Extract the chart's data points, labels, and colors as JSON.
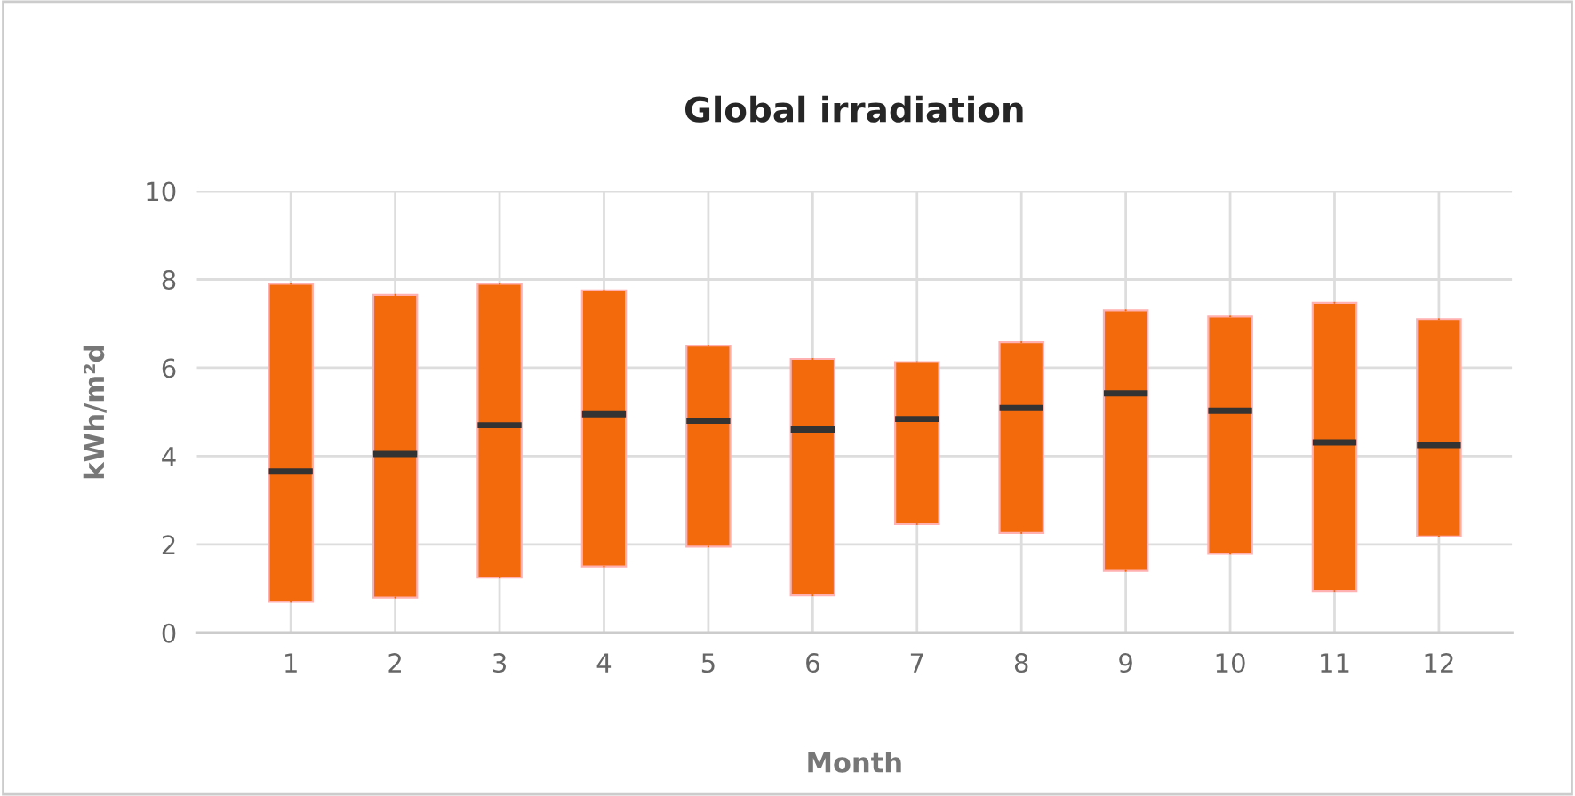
{
  "chart_data": {
    "type": "box",
    "title": "Global irradiation",
    "xlabel": "Month",
    "ylabel": "kWh/m²d",
    "categories": [
      "1",
      "2",
      "3",
      "4",
      "5",
      "6",
      "7",
      "8",
      "9",
      "10",
      "11",
      "12"
    ],
    "series": [
      {
        "color": "#f26a0c",
        "boxes": [
          {
            "low": 0.7,
            "q1": 0.7,
            "median": 3.65,
            "q3": 7.9,
            "high": 7.9
          },
          {
            "low": 0.8,
            "q1": 0.8,
            "median": 4.05,
            "q3": 7.65,
            "high": 7.65
          },
          {
            "low": 1.25,
            "q1": 1.25,
            "median": 4.7,
            "q3": 7.9,
            "high": 7.9
          },
          {
            "low": 1.5,
            "q1": 1.5,
            "median": 4.95,
            "q3": 7.75,
            "high": 7.75
          },
          {
            "low": 1.95,
            "q1": 1.95,
            "median": 4.8,
            "q3": 6.5,
            "high": 6.5
          },
          {
            "low": 0.85,
            "q1": 0.85,
            "median": 4.6,
            "q3": 6.2,
            "high": 6.2
          },
          {
            "low": 2.46,
            "q1": 2.46,
            "median": 4.84,
            "q3": 6.13,
            "high": 6.13
          },
          {
            "low": 2.26,
            "q1": 2.26,
            "median": 5.09,
            "q3": 6.58,
            "high": 6.58
          },
          {
            "low": 1.4,
            "q1": 1.4,
            "median": 5.42,
            "q3": 7.3,
            "high": 7.3
          },
          {
            "low": 1.79,
            "q1": 1.79,
            "median": 5.03,
            "q3": 7.16,
            "high": 7.16
          },
          {
            "low": 0.95,
            "q1": 0.95,
            "median": 4.31,
            "q3": 7.47,
            "high": 7.47
          },
          {
            "low": 2.18,
            "q1": 2.18,
            "median": 4.25,
            "q3": 7.1,
            "high": 7.1
          }
        ]
      }
    ],
    "ylim": [
      0,
      10
    ],
    "yticks": [
      0,
      2,
      4,
      6,
      8,
      10
    ],
    "grid": true,
    "legend": false
  }
}
